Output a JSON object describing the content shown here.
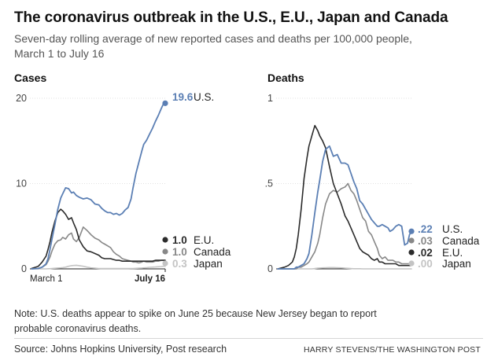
{
  "title": "The coronavirus outbreak in the U.S., E.U., Japan and Canada",
  "subtitle_line1": "Seven-day rolling average of new reported cases and deaths per 100,000 people,",
  "subtitle_line2": "March 1 to July 16",
  "note_line1": "Note: U.S. deaths appear to spike on June 25 because New Jersey began to report",
  "note_line2": "probable coronavirus deaths.",
  "source": "Source: Johns Hopkins University, Post research",
  "credit": "HARRY STEVENS/THE WASHINGTON POST",
  "colors": {
    "US": "#5b7fb4",
    "EU": "#2b2b2b",
    "Canada": "#888888",
    "Japan": "#c4c4c4"
  },
  "chart_data": [
    {
      "type": "line",
      "title": "Cases",
      "x": [
        0,
        7,
        11,
        15,
        17,
        19,
        21,
        24,
        27,
        30,
        32,
        35,
        38,
        41,
        43,
        46,
        49,
        53,
        57,
        61,
        65,
        69,
        72,
        75,
        78,
        81,
        84,
        87,
        90,
        93,
        96,
        99,
        102,
        104,
        107,
        110,
        113,
        115,
        118,
        121,
        124,
        127,
        130,
        133,
        135,
        137
      ],
      "xtick_labels": [
        "March 1",
        "July 16"
      ],
      "ylim": [
        0,
        20
      ],
      "yticks": [
        0,
        10,
        20
      ],
      "ytick_labels": [
        "0",
        "10",
        "20"
      ],
      "series": [
        {
          "key": "US",
          "name": "U.S.",
          "end_label": "19.6",
          "values": [
            0,
            0.05,
            0.2,
            0.6,
            1.2,
            2.3,
            3.5,
            5.2,
            7.0,
            8.3,
            8.8,
            9.5,
            9.4,
            8.9,
            9.0,
            8.6,
            8.4,
            8.2,
            8.3,
            8.1,
            7.6,
            7.5,
            7.1,
            6.8,
            6.6,
            6.6,
            6.4,
            6.5,
            6.3,
            6.5,
            6.9,
            7.2,
            8.2,
            9.5,
            11.2,
            12.5,
            13.8,
            14.6,
            15.1,
            15.8,
            16.5,
            17.3,
            18.0,
            18.8,
            19.3,
            19.6
          ]
        },
        {
          "key": "EU",
          "name": "E.U.",
          "end_label": "1.0",
          "values": [
            0.05,
            0.3,
            0.8,
            1.5,
            2.3,
            3.2,
            4.3,
            5.6,
            6.6,
            7.0,
            6.8,
            6.4,
            5.8,
            6.0,
            5.4,
            4.6,
            3.4,
            2.6,
            2.1,
            2.0,
            1.8,
            1.6,
            1.3,
            1.2,
            1.2,
            1.2,
            1.1,
            1.0,
            1.0,
            0.9,
            0.9,
            0.9,
            0.9,
            0.9,
            0.9,
            0.9,
            0.9,
            0.9,
            0.9,
            0.9,
            0.9,
            1.0,
            1.0,
            1.0,
            1.0,
            1.0
          ]
        },
        {
          "key": "Canada",
          "name": "Canada",
          "end_label": "1.0",
          "values": [
            0,
            0.05,
            0.2,
            0.5,
            0.9,
            1.4,
            2.1,
            2.9,
            3.3,
            3.4,
            3.7,
            3.5,
            4.0,
            4.2,
            3.5,
            3.2,
            3.7,
            4.9,
            4.5,
            4.0,
            3.6,
            3.4,
            3.1,
            2.9,
            2.7,
            2.5,
            2.0,
            1.7,
            1.5,
            1.2,
            1.1,
            1.0,
            0.9,
            0.8,
            0.8,
            0.7,
            0.8,
            0.9,
            0.8,
            0.8,
            0.8,
            0.9,
            0.9,
            1.0,
            1.0,
            1.0
          ]
        },
        {
          "key": "Japan",
          "name": "Japan",
          "end_label": "0.3",
          "values": [
            0,
            0,
            0,
            0,
            0.02,
            0.03,
            0.05,
            0.07,
            0.1,
            0.12,
            0.15,
            0.2,
            0.3,
            0.38,
            0.4,
            0.42,
            0.38,
            0.3,
            0.2,
            0.12,
            0.08,
            0.05,
            0.04,
            0.04,
            0.04,
            0.04,
            0.04,
            0.04,
            0.04,
            0.04,
            0.04,
            0.04,
            0.05,
            0.05,
            0.06,
            0.08,
            0.1,
            0.12,
            0.15,
            0.18,
            0.2,
            0.22,
            0.25,
            0.28,
            0.3,
            0.3
          ]
        }
      ]
    },
    {
      "type": "line",
      "title": "Deaths",
      "x": [
        0,
        7,
        11,
        15,
        17,
        19,
        21,
        24,
        27,
        30,
        32,
        35,
        38,
        41,
        43,
        46,
        49,
        53,
        57,
        61,
        65,
        69,
        72,
        75,
        78,
        81,
        84,
        87,
        90,
        93,
        96,
        99,
        102,
        104,
        107,
        110,
        113,
        115,
        118,
        121,
        124,
        127,
        130,
        133,
        135,
        137
      ],
      "ylim": [
        0,
        1
      ],
      "yticks": [
        0,
        0.5,
        1
      ],
      "ytick_labels": [
        "0",
        ".5",
        "1"
      ],
      "series": [
        {
          "key": "US",
          "name": "U.S.",
          "end_label": ".22",
          "values": [
            0,
            0,
            0,
            0,
            0,
            0.01,
            0.01,
            0.02,
            0.03,
            0.06,
            0.09,
            0.2,
            0.33,
            0.45,
            0.52,
            0.63,
            0.7,
            0.72,
            0.66,
            0.67,
            0.62,
            0.62,
            0.61,
            0.56,
            0.51,
            0.47,
            0.4,
            0.38,
            0.35,
            0.32,
            0.29,
            0.27,
            0.25,
            0.25,
            0.26,
            0.25,
            0.24,
            0.22,
            0.23,
            0.25,
            0.26,
            0.25,
            0.14,
            0.15,
            0.2,
            0.22
          ]
        },
        {
          "key": "EU",
          "name": "E.U.",
          "end_label": ".02",
          "values": [
            0,
            0.01,
            0.02,
            0.04,
            0.07,
            0.12,
            0.2,
            0.35,
            0.53,
            0.65,
            0.72,
            0.78,
            0.84,
            0.81,
            0.78,
            0.75,
            0.71,
            0.6,
            0.5,
            0.44,
            0.38,
            0.31,
            0.28,
            0.24,
            0.2,
            0.16,
            0.12,
            0.1,
            0.09,
            0.08,
            0.06,
            0.05,
            0.06,
            0.04,
            0.04,
            0.03,
            0.03,
            0.03,
            0.03,
            0.03,
            0.02,
            0.02,
            0.02,
            0.02,
            0.02,
            0.02
          ]
        },
        {
          "key": "Canada",
          "name": "Canada",
          "end_label": ".03",
          "values": [
            0,
            0,
            0,
            0,
            0,
            0,
            0.01,
            0.01,
            0.02,
            0.03,
            0.04,
            0.07,
            0.1,
            0.15,
            0.2,
            0.3,
            0.38,
            0.44,
            0.46,
            0.45,
            0.47,
            0.48,
            0.5,
            0.46,
            0.44,
            0.4,
            0.35,
            0.3,
            0.28,
            0.22,
            0.2,
            0.16,
            0.12,
            0.08,
            0.06,
            0.07,
            0.05,
            0.05,
            0.05,
            0.04,
            0.04,
            0.03,
            0.03,
            0.03,
            0.03,
            0.03
          ]
        },
        {
          "key": "Japan",
          "name": "Japan",
          "end_label": ".00",
          "values": [
            0,
            0,
            0,
            0,
            0,
            0,
            0,
            0,
            0,
            0,
            0,
            0,
            0.002,
            0.004,
            0.005,
            0.006,
            0.007,
            0.008,
            0.008,
            0.007,
            0.006,
            0.004,
            0.003,
            0.002,
            0.001,
            0.001,
            0.001,
            0,
            0,
            0,
            0,
            0,
            0,
            0,
            0,
            0,
            0,
            0,
            0,
            0,
            0,
            0,
            0,
            0,
            0,
            0
          ]
        }
      ]
    }
  ]
}
